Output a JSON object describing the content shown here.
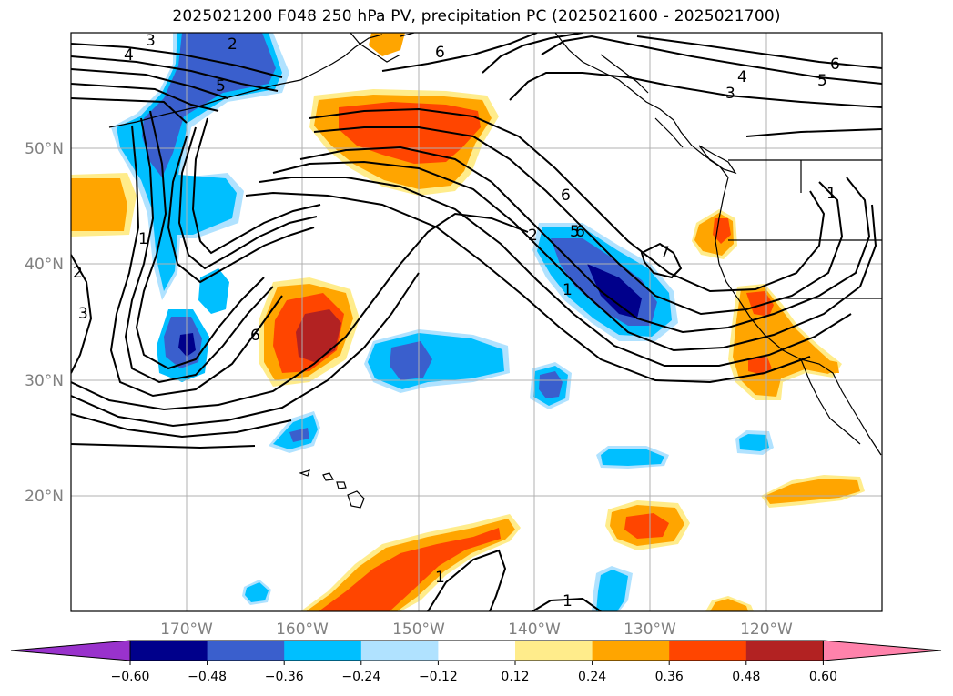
{
  "title": "2025021200 F048 250 hPa PV, precipitation PC (2025021600 - 2025021700)",
  "lat_labels": [
    "50°N",
    "40°N",
    "30°N",
    "20°N"
  ],
  "lon_labels": [
    "170°W",
    "160°W",
    "150°W",
    "140°W",
    "130°W",
    "120°W"
  ],
  "colorbar": {
    "ticks": [
      "−0.60",
      "−0.48",
      "−0.36",
      "−0.24",
      "−0.12",
      "0.12",
      "0.24",
      "0.36",
      "0.48",
      "0.60"
    ],
    "colors": [
      "#9932cc",
      "#00008b",
      "#3a5fcd",
      "#00bfff",
      "#b0e2ff",
      "#ffffff",
      "#ffec8b",
      "#ffa500",
      "#ff4500",
      "#b22222",
      "#ff82ab"
    ]
  },
  "pv_contour_labels": [
    "3",
    "2",
    "4",
    "5",
    "6",
    "6",
    "4",
    "5",
    "3",
    "6",
    "1",
    "2",
    "3",
    "6",
    "6",
    "2",
    "5",
    "1",
    "7",
    "1",
    "1",
    "1"
  ]
}
